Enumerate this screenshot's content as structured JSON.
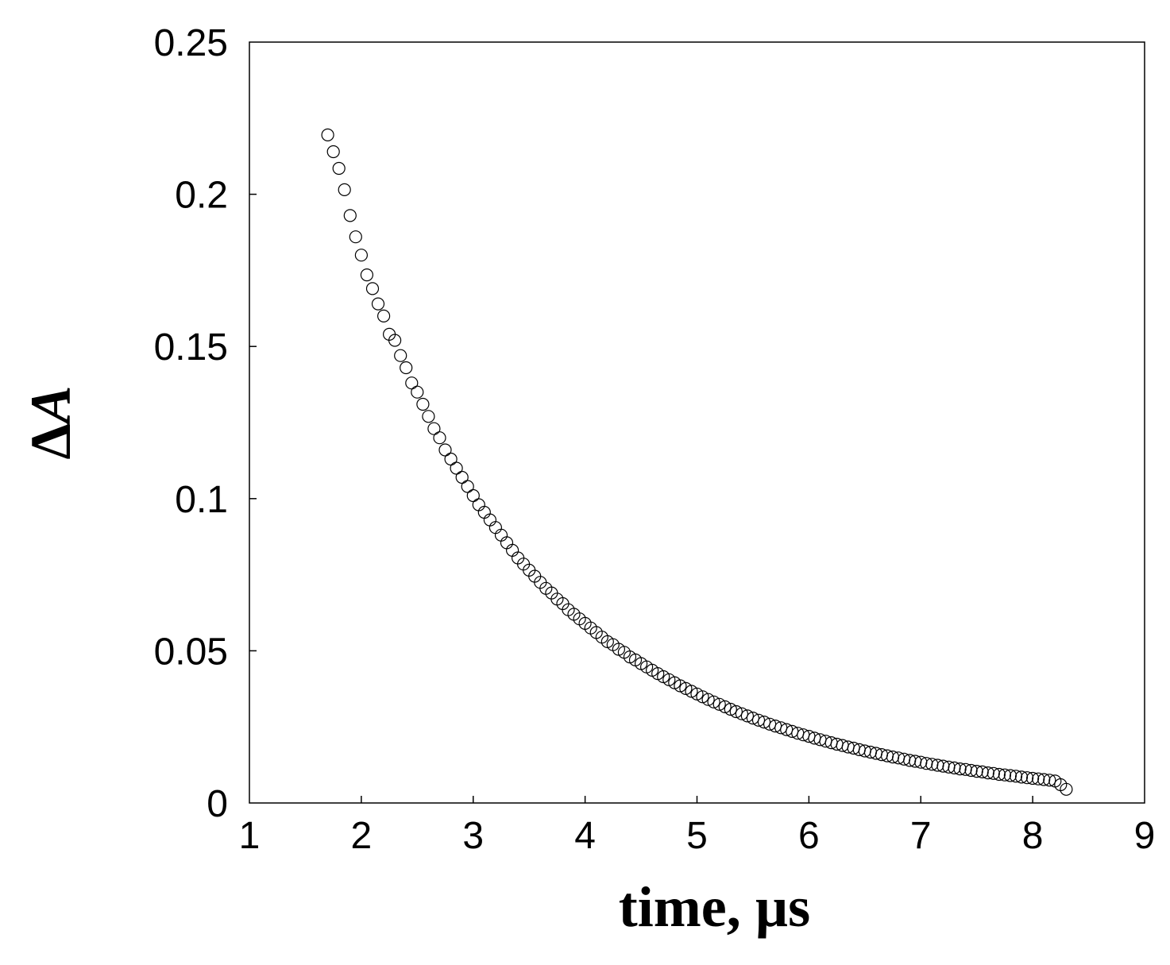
{
  "chart_data": {
    "type": "scatter",
    "title": "",
    "xlabel": "time, µs",
    "ylabel": "ΔA",
    "ylabel_parts": {
      "delta": "Δ",
      "symbol": "A"
    },
    "xlim": [
      1,
      9
    ],
    "ylim": [
      0,
      0.25
    ],
    "xticks": [
      1,
      2,
      3,
      4,
      5,
      6,
      7,
      8,
      9
    ],
    "yticks": [
      0,
      0.05,
      0.1,
      0.15,
      0.2,
      0.25
    ],
    "xtick_labels": [
      "1",
      "2",
      "3",
      "4",
      "5",
      "6",
      "7",
      "8",
      "9"
    ],
    "ytick_labels": [
      "0",
      "0.05",
      "0.1",
      "0.15",
      "0.2",
      "0.25"
    ],
    "grid": false,
    "legend": "none",
    "marker": "open-circle",
    "color": "#000000",
    "series": [
      {
        "x": [
          1.7,
          1.75,
          1.8,
          1.85,
          1.9,
          1.95,
          2.0,
          2.05,
          2.1,
          2.15,
          2.2,
          2.25,
          2.3,
          2.35,
          2.4,
          2.45,
          2.5,
          2.55,
          2.6,
          2.65,
          2.7,
          2.75,
          2.8,
          2.85,
          2.9,
          2.95,
          3.0,
          3.05,
          3.1,
          3.15,
          3.2,
          3.25,
          3.3,
          3.35,
          3.4,
          3.45,
          3.5,
          3.55,
          3.6,
          3.65,
          3.7,
          3.75,
          3.8,
          3.85,
          3.9,
          3.95,
          4.0,
          4.05,
          4.1,
          4.15,
          4.2,
          4.25,
          4.3,
          4.35,
          4.4,
          4.45,
          4.5,
          4.55,
          4.6,
          4.65,
          4.7,
          4.75,
          4.8,
          4.85,
          4.9,
          4.95,
          5.0,
          5.05,
          5.1,
          5.15,
          5.2,
          5.25,
          5.3,
          5.35,
          5.4,
          5.45,
          5.5,
          5.55,
          5.6,
          5.65,
          5.7,
          5.75,
          5.8,
          5.85,
          5.9,
          5.95,
          6.0,
          6.05,
          6.1,
          6.15,
          6.2,
          6.25,
          6.3,
          6.35,
          6.4,
          6.45,
          6.5,
          6.55,
          6.6,
          6.65,
          6.7,
          6.75,
          6.8,
          6.85,
          6.9,
          6.95,
          7.0,
          7.05,
          7.1,
          7.15,
          7.2,
          7.25,
          7.3,
          7.35,
          7.4,
          7.45,
          7.5,
          7.55,
          7.6,
          7.65,
          7.7,
          7.75,
          7.8,
          7.85,
          7.9,
          7.95,
          8.0,
          8.05,
          8.1,
          8.15,
          8.2,
          8.25,
          8.3
        ],
        "y": [
          0.2195,
          0.214,
          0.2085,
          0.2015,
          0.193,
          0.186,
          0.18,
          0.1735,
          0.169,
          0.164,
          0.16,
          0.154,
          0.152,
          0.147,
          0.143,
          0.138,
          0.135,
          0.131,
          0.127,
          0.123,
          0.12,
          0.116,
          0.113,
          0.11,
          0.107,
          0.104,
          0.101,
          0.098,
          0.0955,
          0.093,
          0.0905,
          0.088,
          0.0855,
          0.083,
          0.0805,
          0.0785,
          0.0765,
          0.0745,
          0.0725,
          0.0705,
          0.069,
          0.067,
          0.0655,
          0.0635,
          0.062,
          0.0605,
          0.059,
          0.0575,
          0.056,
          0.0545,
          0.053,
          0.052,
          0.0505,
          0.0495,
          0.048,
          0.047,
          0.0458,
          0.0447,
          0.0436,
          0.0425,
          0.0415,
          0.0405,
          0.0395,
          0.0385,
          0.0376,
          0.0367,
          0.0358,
          0.0349,
          0.034,
          0.0332,
          0.0324,
          0.0316,
          0.0308,
          0.03,
          0.0293,
          0.0286,
          0.0279,
          0.0272,
          0.0266,
          0.0259,
          0.0253,
          0.0247,
          0.0241,
          0.0235,
          0.0229,
          0.0224,
          0.0219,
          0.0213,
          0.0208,
          0.0203,
          0.0198,
          0.0193,
          0.0189,
          0.0184,
          0.018,
          0.0175,
          0.0171,
          0.0167,
          0.0163,
          0.0159,
          0.0155,
          0.0151,
          0.0148,
          0.0144,
          0.014,
          0.0137,
          0.0134,
          0.013,
          0.0127,
          0.0124,
          0.0121,
          0.0118,
          0.0115,
          0.0112,
          0.011,
          0.0107,
          0.0104,
          0.0102,
          0.0099,
          0.0097,
          0.0094,
          0.0092,
          0.009,
          0.0088,
          0.0085,
          0.0083,
          0.0081,
          0.0079,
          0.0077,
          0.0075,
          0.0072,
          0.006,
          0.0045
        ]
      }
    ]
  }
}
